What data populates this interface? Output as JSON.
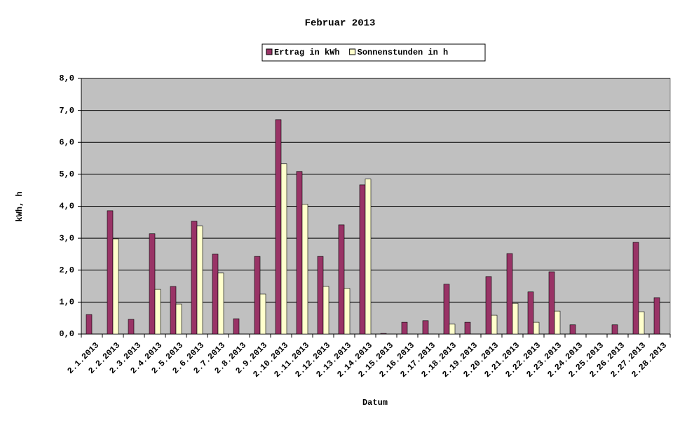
{
  "chart_data": {
    "type": "bar",
    "title": "Februar 2013",
    "x_label": "Datum",
    "y_label": "kWh, h",
    "categories": [
      "2.1.2013",
      "2.2.2013",
      "2.3.2013",
      "2.4.2013",
      "2.5.2013",
      "2.6.2013",
      "2.7.2013",
      "2.8.2013",
      "2.9.2013",
      "2.10.2013",
      "2.11.2013",
      "2.12.2013",
      "2.13.2013",
      "2.14.2013",
      "2.15.2013",
      "2.16.2013",
      "2.17.2013",
      "2.18.2013",
      "2.19.2013",
      "2.20.2013",
      "2.21.2013",
      "2.22.2013",
      "2.23.2013",
      "2.24.2013",
      "2.25.2013",
      "2.26.2013",
      "2.27.2013",
      "2.28.2013"
    ],
    "series": [
      {
        "name": "Ertrag in kWh",
        "color": "#993366",
        "values": [
          0.61,
          3.86,
          0.46,
          3.14,
          1.49,
          3.53,
          2.5,
          0.48,
          2.43,
          6.71,
          5.09,
          2.43,
          3.42,
          4.67,
          0.02,
          0.37,
          0.42,
          1.56,
          0.37,
          1.8,
          2.52,
          1.32,
          1.95,
          0.29,
          0,
          0.29,
          2.87,
          1.14
        ]
      },
      {
        "name": "Sonnenstunden in h",
        "color": "#ffffcc",
        "values": [
          0,
          2.98,
          0,
          1.4,
          0.94,
          3.38,
          1.91,
          0,
          1.25,
          5.33,
          4.06,
          1.49,
          1.43,
          4.85,
          0,
          0,
          0,
          0.31,
          0,
          0.59,
          0.96,
          0.37,
          0.72,
          0,
          0,
          0,
          0.7,
          0
        ]
      }
    ],
    "ylim": [
      0,
      8
    ],
    "yticks": [
      {
        "value": 0,
        "label": "0,0"
      },
      {
        "value": 1,
        "label": "1,0"
      },
      {
        "value": 2,
        "label": "2,0"
      },
      {
        "value": 3,
        "label": "3,0"
      },
      {
        "value": 4,
        "label": "4,0"
      },
      {
        "value": 5,
        "label": "5,0"
      },
      {
        "value": 6,
        "label": "6,0"
      },
      {
        "value": 7,
        "label": "7,0"
      },
      {
        "value": 8,
        "label": "8,0"
      }
    ],
    "grid": true,
    "legend": "top",
    "plot_background": "#c0c0c0"
  }
}
